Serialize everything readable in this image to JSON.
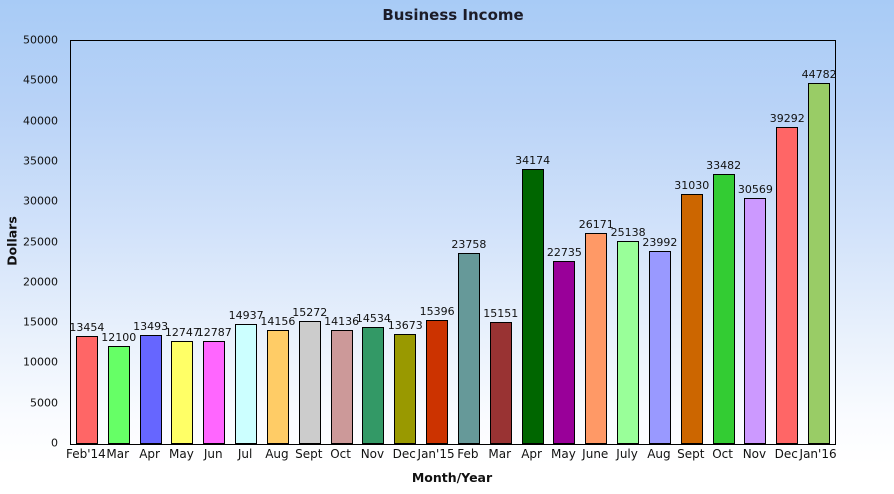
{
  "chart_data": {
    "type": "bar",
    "title": "Business Income",
    "xlabel": "Month/Year",
    "ylabel": "Dollars",
    "ylim": [
      0,
      50000
    ],
    "yticks": [
      0,
      5000,
      10000,
      15000,
      20000,
      25000,
      30000,
      35000,
      40000,
      45000,
      50000
    ],
    "grid": false,
    "legend": "none",
    "value_labels_shown": true,
    "categories": [
      "Feb'14",
      "Mar",
      "Apr",
      "May",
      "Jun",
      "Jul",
      "Aug",
      "Sept",
      "Oct",
      "Nov",
      "Dec",
      "Jan'15",
      "Feb",
      "Mar",
      "Apr",
      "May",
      "June",
      "July",
      "Aug",
      "Sept",
      "Oct",
      "Nov",
      "Dec",
      "Jan'16"
    ],
    "values": [
      13454,
      12100,
      13493,
      12747,
      12787,
      14937,
      14156,
      15272,
      14136,
      14534,
      13673,
      15396,
      23758,
      15151,
      34174,
      22735,
      26171,
      25138,
      23992,
      31030,
      33482,
      30569,
      39292,
      44782
    ],
    "bar_colors": [
      "#ff6666",
      "#66ff66",
      "#6666ff",
      "#ffff66",
      "#ff66ff",
      "#ccffff",
      "#ffcc66",
      "#cccccc",
      "#cc9999",
      "#339966",
      "#999900",
      "#cc3300",
      "#669999",
      "#993333",
      "#006600",
      "#990099",
      "#ff9966",
      "#99ff99",
      "#9999ff",
      "#cc6600",
      "#33cc33",
      "#cc99ff",
      "#ff6666",
      "#99cc66"
    ],
    "bar_border_color": "#000000"
  },
  "colors": {
    "background_top": "#a8cbf6",
    "background_bottom": "#ffffff",
    "frame": "#000000",
    "title_text": "#1c1c28",
    "label_text": "#111111"
  }
}
